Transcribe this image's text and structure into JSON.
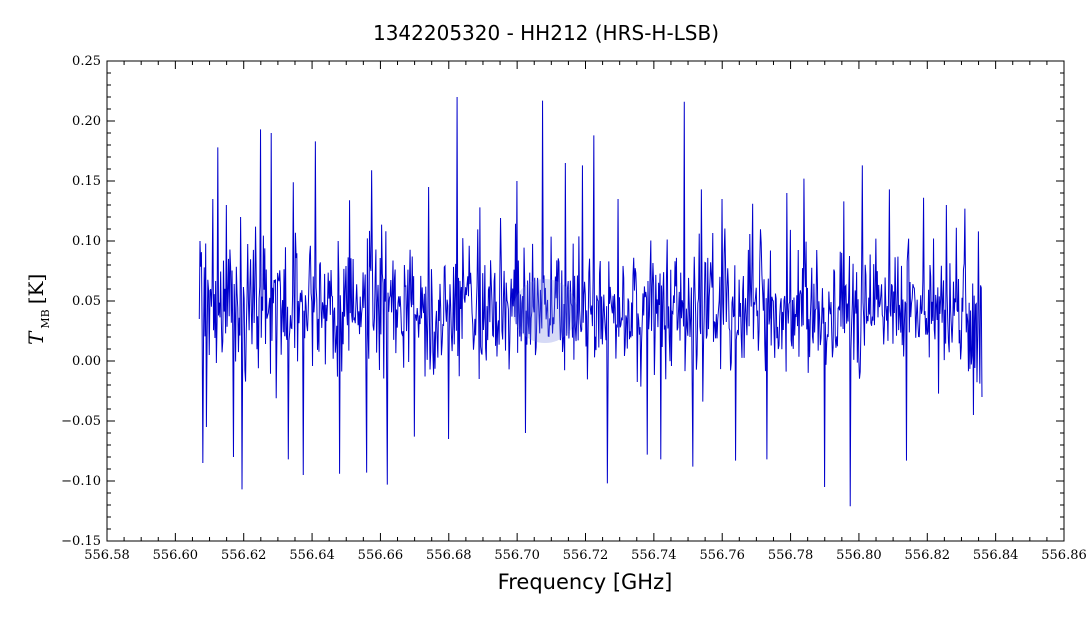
{
  "chart_data": {
    "type": "line",
    "title": "1342205320 - HH212 (HRS-H-LSB)",
    "xlabel": "Frequency [GHz]",
    "ylabel": "T",
    "ylabel_sub": "MB",
    "ylabel_unit": "[K]",
    "xlim": [
      556.58,
      556.86
    ],
    "ylim": [
      -0.15,
      0.25
    ],
    "xticks": [
      "556.58",
      "556.60",
      "556.62",
      "556.64",
      "556.66",
      "556.68",
      "556.70",
      "556.72",
      "556.74",
      "556.76",
      "556.78",
      "556.80",
      "556.82",
      "556.84",
      "556.86"
    ],
    "yticks": [
      "−0.15",
      "−0.10",
      "−0.05",
      "0.00",
      "0.05",
      "0.10",
      "0.15",
      "0.20",
      "0.25"
    ],
    "grid": false,
    "series": [
      {
        "color": "#0000cc",
        "x_start": 556.607,
        "x_end": 556.836,
        "spike_points": [
          {
            "x": 556.6072,
            "y": 0.1
          },
          {
            "x": 556.608,
            "y": -0.085
          },
          {
            "x": 556.609,
            "y": -0.055
          },
          {
            "x": 556.611,
            "y": 0.135
          },
          {
            "x": 556.6125,
            "y": 0.178
          },
          {
            "x": 556.615,
            "y": 0.13
          },
          {
            "x": 556.617,
            "y": -0.08
          },
          {
            "x": 556.6195,
            "y": -0.107
          },
          {
            "x": 556.6235,
            "y": 0.112
          },
          {
            "x": 556.625,
            "y": 0.193
          },
          {
            "x": 556.628,
            "y": 0.19
          },
          {
            "x": 556.633,
            "y": -0.082
          },
          {
            "x": 556.6345,
            "y": 0.149
          },
          {
            "x": 556.6375,
            "y": -0.095
          },
          {
            "x": 556.6395,
            "y": 0.096
          },
          {
            "x": 556.641,
            "y": 0.183
          },
          {
            "x": 556.648,
            "y": -0.094
          },
          {
            "x": 556.651,
            "y": 0.134
          },
          {
            "x": 556.656,
            "y": -0.093
          },
          {
            "x": 556.6575,
            "y": 0.159
          },
          {
            "x": 556.662,
            "y": -0.103
          },
          {
            "x": 556.67,
            "y": -0.063
          },
          {
            "x": 556.674,
            "y": 0.145
          },
          {
            "x": 556.68,
            "y": -0.065
          },
          {
            "x": 556.6825,
            "y": 0.22
          },
          {
            "x": 556.689,
            "y": 0.128
          },
          {
            "x": 556.7,
            "y": 0.15
          },
          {
            "x": 556.7025,
            "y": -0.06
          },
          {
            "x": 556.7075,
            "y": 0.217
          },
          {
            "x": 556.714,
            "y": 0.165
          },
          {
            "x": 556.719,
            "y": 0.163
          },
          {
            "x": 556.7225,
            "y": 0.188
          },
          {
            "x": 556.7265,
            "y": -0.102
          },
          {
            "x": 556.7295,
            "y": 0.135
          },
          {
            "x": 556.738,
            "y": -0.078
          },
          {
            "x": 556.742,
            "y": -0.082
          },
          {
            "x": 556.749,
            "y": 0.216
          },
          {
            "x": 556.7515,
            "y": -0.088
          },
          {
            "x": 556.754,
            "y": 0.143
          },
          {
            "x": 556.76,
            "y": 0.135
          },
          {
            "x": 556.764,
            "y": -0.083
          },
          {
            "x": 556.769,
            "y": 0.131
          },
          {
            "x": 556.773,
            "y": -0.082
          },
          {
            "x": 556.779,
            "y": 0.14
          },
          {
            "x": 556.784,
            "y": 0.152
          },
          {
            "x": 556.79,
            "y": -0.105
          },
          {
            "x": 556.7955,
            "y": 0.133
          },
          {
            "x": 556.7975,
            "y": -0.121
          },
          {
            "x": 556.801,
            "y": 0.163
          },
          {
            "x": 556.805,
            "y": 0.102
          },
          {
            "x": 556.809,
            "y": 0.143
          },
          {
            "x": 556.814,
            "y": -0.083
          },
          {
            "x": 556.819,
            "y": 0.136
          },
          {
            "x": 556.8255,
            "y": 0.13
          },
          {
            "x": 556.8285,
            "y": 0.111
          },
          {
            "x": 556.831,
            "y": 0.127
          },
          {
            "x": 556.8335,
            "y": -0.045
          },
          {
            "x": 556.835,
            "y": 0.108
          },
          {
            "x": 556.836,
            "y": -0.03
          }
        ]
      }
    ]
  }
}
